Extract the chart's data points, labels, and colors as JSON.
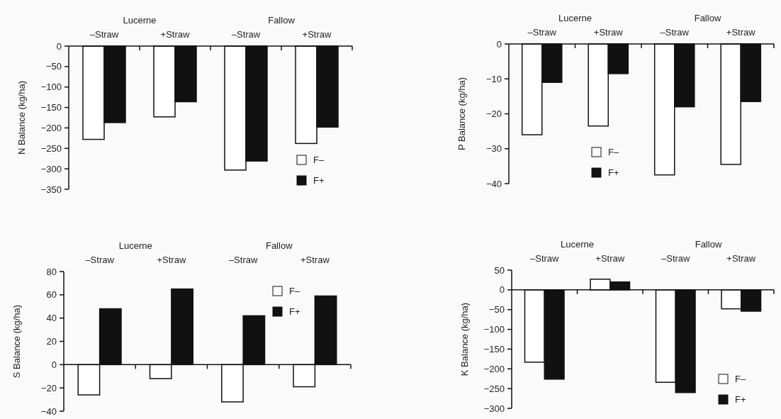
{
  "chart_data": [
    {
      "type": "bar",
      "ylabel": "N Balance (kg/ha)",
      "categories": [
        "–Straw",
        "+Straw",
        "–Straw",
        "+Straw"
      ],
      "annotations": [
        "Lucerne",
        "Fallow"
      ],
      "ylim": [
        -350,
        0
      ],
      "yticks": [
        0,
        -50,
        -100,
        -150,
        -200,
        -250,
        -300,
        -350
      ],
      "legend": "bottom right",
      "series": [
        {
          "name": "F–",
          "color": "#ffffff",
          "values": [
            -228,
            -173,
            -303,
            -238
          ]
        },
        {
          "name": "F+",
          "color": "#111111",
          "values": [
            -187,
            -136,
            -281,
            -198
          ]
        }
      ]
    },
    {
      "type": "bar",
      "ylabel": "P Balance (kg/ha)",
      "categories": [
        "–Straw",
        "+Straw",
        "–Straw",
        "+Straw"
      ],
      "annotations": [
        "Lucerne",
        "Fallow"
      ],
      "ylim": [
        -40,
        0
      ],
      "yticks": [
        0,
        -10,
        -20,
        -30,
        -40
      ],
      "legend": "bottom",
      "series": [
        {
          "name": "F–",
          "color": "#ffffff",
          "values": [
            -26,
            -23.5,
            -37.5,
            -34.5
          ]
        },
        {
          "name": "F+",
          "color": "#111111",
          "values": [
            -11,
            -8.5,
            -18,
            -16.5
          ]
        }
      ]
    },
    {
      "type": "bar",
      "ylabel": "S Balance (kg/ha)",
      "categories": [
        "–Straw",
        "+Straw",
        "–Straw",
        "+Straw"
      ],
      "annotations": [
        "Lucerne",
        "Fallow"
      ],
      "ylim": [
        -40,
        80
      ],
      "yticks": [
        80,
        60,
        40,
        20,
        0,
        -20,
        -40
      ],
      "legend": "top right",
      "series": [
        {
          "name": "F–",
          "color": "#ffffff",
          "values": [
            -26,
            -12,
            -32,
            -19
          ]
        },
        {
          "name": "F+",
          "color": "#111111",
          "values": [
            48,
            65,
            42,
            59
          ]
        }
      ]
    },
    {
      "type": "bar",
      "ylabel": "K Balance (kg/ha)",
      "categories": [
        "–Straw",
        "+Straw",
        "–Straw",
        "+Straw"
      ],
      "annotations": [
        "Lucerne",
        "Fallow"
      ],
      "ylim": [
        -300,
        50
      ],
      "yticks": [
        50,
        0,
        -50,
        -100,
        -150,
        -200,
        -250,
        -300
      ],
      "legend": "bottom right",
      "series": [
        {
          "name": "F–",
          "color": "#ffffff",
          "values": [
            -183,
            27,
            -234,
            -48
          ]
        },
        {
          "name": "F+",
          "color": "#111111",
          "values": [
            -226,
            20,
            -260,
            -54
          ]
        }
      ]
    }
  ]
}
